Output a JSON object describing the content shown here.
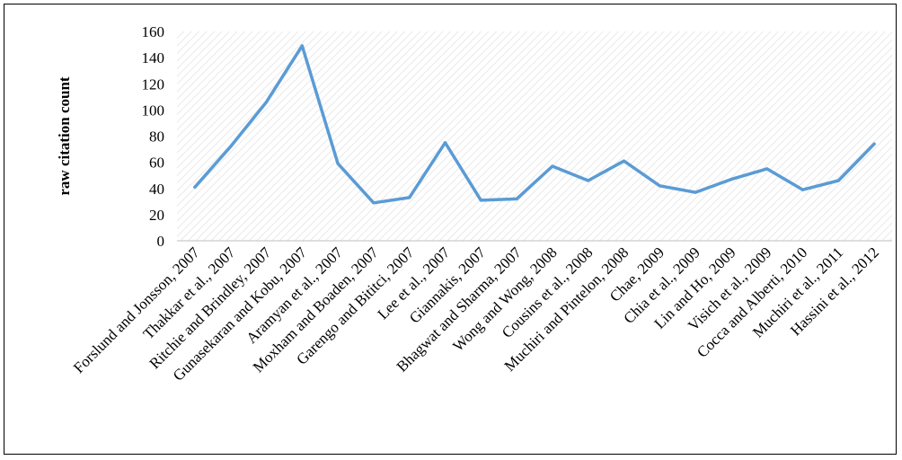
{
  "chart_data": {
    "type": "line",
    "title": "",
    "xlabel": "",
    "ylabel": "raw citation count",
    "ylim": [
      0,
      160
    ],
    "yticks": [
      0,
      20,
      40,
      60,
      80,
      100,
      120,
      140,
      160
    ],
    "grid": "hatched plot area",
    "legend": "none",
    "line_color": "#5B9BD5",
    "categories": [
      "Forslund and Jonsson, 2007",
      "Thakkar et al., 2007",
      "Ritchie and Brindley, 2007",
      "Gunasekaran and Kobu, 2007",
      "Aramyan et al., 2007",
      "Moxham and Boaden, 2007",
      "Garengo and Bititci, 2007",
      "Lee et al., 2007",
      "Giannakis, 2007",
      "Bhagwat and Sharma, 2007",
      "Wong and Wong, 2008",
      "Cousins et al., 2008",
      "Muchiri and Pintelon, 2008",
      "Chae, 2009",
      "Chia et al., 2009",
      "Lin and Ho, 2009",
      "Visich et al., 2009",
      "Cocca and Alberti, 2010",
      "Muchiri et al., 2011",
      "Hassini et al., 2012"
    ],
    "series": [
      {
        "values": [
          41,
          72,
          106,
          149,
          59,
          29,
          33,
          75,
          31,
          32,
          57,
          46,
          61,
          42,
          37,
          47,
          55,
          39,
          46,
          74
        ]
      }
    ]
  }
}
